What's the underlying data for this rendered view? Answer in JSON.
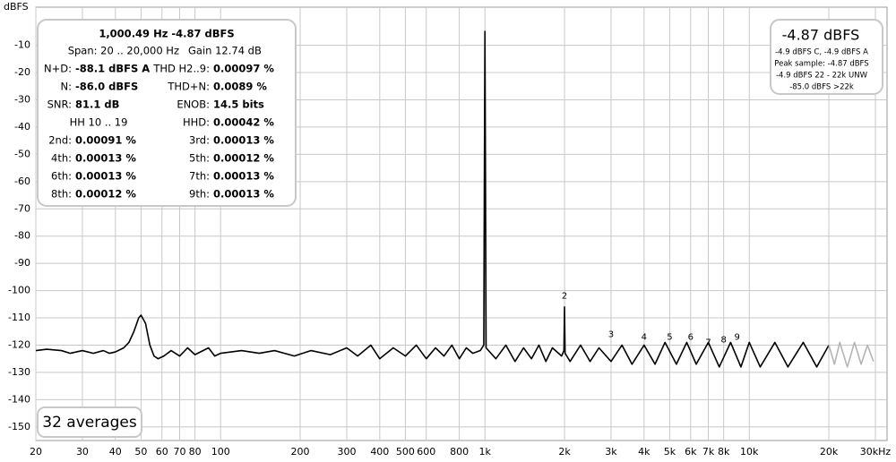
{
  "chart_data": {
    "type": "line",
    "y_label": "dBFS",
    "x_scale": "log",
    "xlim": [
      20,
      30000
    ],
    "ylim": [
      -155,
      4
    ],
    "grid": true,
    "xticks": [
      20,
      30,
      40,
      50,
      60,
      70,
      80,
      100,
      200,
      300,
      400,
      500,
      600,
      800,
      {
        "value": 1000,
        "label": "1k"
      },
      {
        "value": 2000,
        "label": "2k"
      },
      {
        "value": 3000,
        "label": "3k"
      },
      {
        "value": 4000,
        "label": "4k"
      },
      {
        "value": 5000,
        "label": "5k"
      },
      {
        "value": 6000,
        "label": "6k"
      },
      {
        "value": 7000,
        "label": "7k"
      },
      {
        "value": 8000,
        "label": "8k"
      },
      {
        "value": 10000,
        "label": "10k"
      },
      {
        "value": 20000,
        "label": "20k"
      },
      {
        "value": 30000,
        "label": "30kHz"
      }
    ],
    "yticks": [
      -10,
      -20,
      -30,
      -40,
      -50,
      -60,
      -70,
      -80,
      -90,
      -100,
      -110,
      -120,
      -130,
      -140,
      -150
    ],
    "series": [
      {
        "color": "#000000",
        "x": [
          20,
          22,
          25,
          27,
          30,
          33,
          36,
          38,
          40,
          43,
          45,
          47,
          49,
          50,
          52,
          54,
          56,
          58,
          61,
          65,
          70,
          75,
          80,
          90,
          95,
          100,
          120,
          140,
          160,
          190,
          220,
          260,
          300,
          330,
          370,
          400,
          450,
          500,
          550,
          600,
          650,
          700,
          750,
          800,
          850,
          900,
          960,
          990,
          995,
          1000,
          1005,
          1010,
          1100,
          1200,
          1300,
          1400,
          1500,
          1600,
          1700,
          1800,
          1950,
          1990,
          2000,
          2010,
          2100,
          2300,
          2500,
          2700,
          3000,
          3300,
          3600,
          4000,
          4400,
          4800,
          5300,
          5800,
          6300,
          7000,
          7700,
          8500,
          9300,
          10000,
          11000,
          12500,
          14000,
          16000,
          18000,
          20000
        ],
        "values": [
          -122,
          -121.5,
          -122,
          -123,
          -122,
          -123,
          -122,
          -123,
          -122.5,
          -121,
          -119,
          -115,
          -110,
          -109,
          -112,
          -120,
          -124,
          -125,
          -124,
          -122,
          -124,
          -121,
          -123.5,
          -121,
          -124,
          -123,
          -122,
          -123,
          -122,
          -124,
          -122,
          -123.5,
          -121,
          -124,
          -120,
          -125,
          -121,
          -124,
          -120,
          -125,
          -121,
          -124,
          -120,
          -125,
          -121,
          -123,
          -122,
          -120,
          -60,
          -4.87,
          -60,
          -121,
          -125,
          -120,
          -126,
          -121,
          -125,
          -120,
          -126,
          -121,
          -124,
          -122,
          -106,
          -123,
          -126,
          -120,
          -126,
          -121,
          -126,
          -120,
          -127,
          -120,
          -127,
          -119,
          -127,
          -119,
          -127,
          -119,
          -128,
          -119,
          -128,
          -119,
          -128,
          -119,
          -128,
          -119,
          -128,
          -120
        ]
      },
      {
        "color": "#b4b4b4",
        "x": [
          20000,
          21000,
          22000,
          23500,
          25000,
          26500,
          28000,
          29500
        ],
        "values": [
          -120,
          -127,
          -119,
          -128,
          -119,
          -127,
          -120,
          -126
        ]
      }
    ],
    "annotations": [
      {
        "text": "2",
        "x": 2000,
        "y": -102
      },
      {
        "text": "3",
        "x": 3000,
        "y": -116
      },
      {
        "text": "4",
        "x": 4000,
        "y": -117
      },
      {
        "text": "5",
        "x": 5000,
        "y": -117
      },
      {
        "text": "6",
        "x": 6000,
        "y": -117
      },
      {
        "text": "7",
        "x": 7000,
        "y": -119
      },
      {
        "text": "8",
        "x": 8000,
        "y": -118
      },
      {
        "text": "9",
        "x": 9000,
        "y": -117
      }
    ],
    "info": {
      "header": "1,000.49 Hz  -4.87 dBFS",
      "span": "Span: 20 .. 20,000 Hz",
      "gain": "Gain 12.74 dB",
      "rows": [
        {
          "l1": "N+D:",
          "v1": "-88.1 dBFS A",
          "l2": "THD H2..9:",
          "v2": "0.00097 %"
        },
        {
          "l1": "N:",
          "v1": "-86.0 dBFS",
          "l2": "THD+N:",
          "v2": "0.0089 %"
        },
        {
          "l1": "SNR:",
          "v1": "81.1 dB",
          "l2": "ENOB:",
          "v2": "14.5 bits"
        },
        {
          "l1": "HH 10 .. 19",
          "l2": "HHD:",
          "v2": "0.00042 %"
        },
        {
          "l1": "2nd:",
          "v1": "0.00091 %",
          "l2": "3rd:",
          "v2": "0.00013 %"
        },
        {
          "l1": "4th:",
          "v1": "0.00013 %",
          "l2": "5th:",
          "v2": "0.00012 %"
        },
        {
          "l1": "6th:",
          "v1": "0.00013 %",
          "l2": "7th:",
          "v2": "0.00013 %"
        },
        {
          "l1": "8th:",
          "v1": "0.00012 %",
          "l2": "9th:",
          "v2": "0.00013 %"
        }
      ]
    },
    "level_box": {
      "main": "-4.87 dBFS",
      "lines": [
        "-4.9 dBFS C, -4.9 dBFS A",
        "Peak sample: -4.87 dBFS",
        "-4.9 dBFS 22 - 22k UNW",
        "-85.0 dBFS >22k"
      ]
    },
    "averages": "32 averages"
  }
}
